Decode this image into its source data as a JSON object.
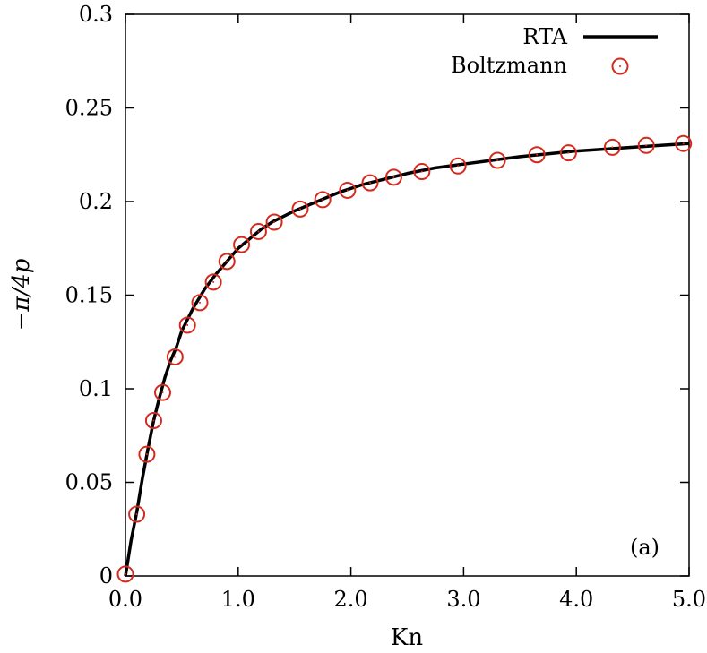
{
  "chart_data": {
    "type": "line",
    "xlabel": "Kn",
    "ylabel": "−π/4p",
    "xlim": [
      0,
      5
    ],
    "ylim": [
      0,
      0.3
    ],
    "xticks": [
      "0.0",
      "1.0",
      "2.0",
      "3.0",
      "4.0",
      "5.0"
    ],
    "yticks": [
      "0",
      "0.05",
      "0.1",
      "0.15",
      "0.2",
      "0.25",
      "0.3"
    ],
    "grid": false,
    "legend_position": "top-right",
    "annotation": "(a)",
    "series": [
      {
        "name": "RTA",
        "kind": "line",
        "color": "#000000",
        "x": [
          0,
          0.05,
          0.1,
          0.15,
          0.2,
          0.25,
          0.3,
          0.35,
          0.4,
          0.45,
          0.5,
          0.6,
          0.7,
          0.8,
          0.9,
          1.0,
          1.1,
          1.2,
          1.3,
          1.4,
          1.5,
          1.7,
          1.9,
          2.1,
          2.3,
          2.5,
          2.75,
          3.0,
          3.25,
          3.5,
          3.75,
          4.0,
          4.25,
          4.5,
          4.75,
          5.0
        ],
        "y": [
          0,
          0.019,
          0.034,
          0.052,
          0.068,
          0.083,
          0.095,
          0.106,
          0.115,
          0.122,
          0.131,
          0.143,
          0.153,
          0.161,
          0.168,
          0.175,
          0.18,
          0.185,
          0.189,
          0.192,
          0.195,
          0.2,
          0.205,
          0.209,
          0.212,
          0.215,
          0.218,
          0.22,
          0.222,
          0.224,
          0.2255,
          0.227,
          0.228,
          0.229,
          0.23,
          0.231
        ]
      },
      {
        "name": "Boltzmann",
        "kind": "scatter",
        "color": "#d42a1e",
        "x": [
          0.0,
          0.1,
          0.19,
          0.25,
          0.33,
          0.44,
          0.55,
          0.66,
          0.78,
          0.9,
          1.03,
          1.18,
          1.32,
          1.55,
          1.75,
          1.97,
          2.17,
          2.38,
          2.63,
          2.95,
          3.3,
          3.65,
          3.93,
          4.32,
          4.62,
          4.95
        ],
        "y": [
          0.001,
          0.033,
          0.065,
          0.083,
          0.098,
          0.117,
          0.134,
          0.146,
          0.157,
          0.168,
          0.177,
          0.184,
          0.189,
          0.196,
          0.201,
          0.206,
          0.21,
          0.213,
          0.216,
          0.219,
          0.222,
          0.225,
          0.226,
          0.229,
          0.23,
          0.231
        ]
      }
    ]
  }
}
